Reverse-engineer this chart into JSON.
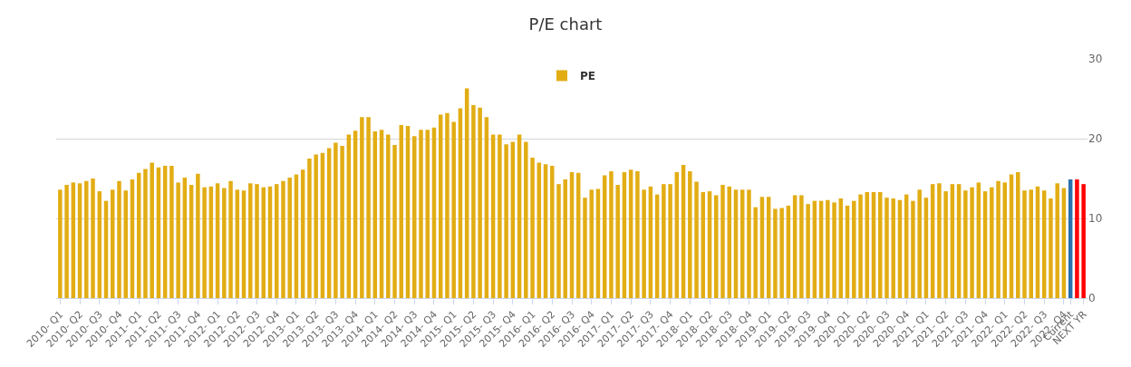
{
  "chart_data": {
    "type": "bar",
    "title": "P/E chart",
    "categories": [
      "2010- Q1",
      null,
      null,
      "2010- Q2",
      null,
      null,
      "2010- Q3",
      null,
      null,
      "2010- Q4",
      null,
      null,
      "2011- Q1",
      null,
      null,
      "2011- Q2",
      null,
      null,
      "2011- Q3",
      null,
      null,
      "2011- Q4",
      null,
      null,
      "2012- Q1",
      null,
      null,
      "2012- Q2",
      null,
      null,
      "2012- Q3",
      null,
      null,
      "2012- Q4",
      null,
      null,
      "2013- Q1",
      null,
      null,
      "2013- Q2",
      null,
      null,
      "2013- Q3",
      null,
      null,
      "2013- Q4",
      null,
      null,
      "2014- Q1",
      null,
      null,
      "2014- Q2",
      null,
      null,
      "2014- Q3",
      null,
      null,
      "2014- Q4",
      null,
      null,
      "2015- Q1",
      null,
      null,
      "2015- Q2",
      null,
      null,
      "2015- Q3",
      null,
      null,
      "2015- Q4",
      null,
      null,
      "2016- Q1",
      null,
      null,
      "2016- Q2",
      null,
      null,
      "2016- Q3",
      null,
      null,
      "2016- Q4",
      null,
      null,
      "2017- Q1",
      null,
      null,
      "2017- Q2",
      null,
      null,
      "2017- Q3",
      null,
      null,
      "2017- Q4",
      null,
      null,
      "2018- Q1",
      null,
      null,
      "2018- Q2",
      null,
      null,
      "2018- Q3",
      null,
      null,
      "2018- Q4",
      null,
      null,
      "2019- Q1",
      null,
      null,
      "2019- Q2",
      null,
      null,
      "2019- Q3",
      null,
      null,
      "2019- Q4",
      null,
      null,
      "2020- Q1",
      null,
      null,
      "2020- Q2",
      null,
      null,
      "2020- Q3",
      null,
      null,
      "2020- Q4",
      null,
      null,
      "2021- Q1",
      null,
      null,
      "2021- Q2",
      null,
      null,
      "2021- Q3",
      null,
      null,
      "2021- Q4",
      null,
      null,
      "2022- Q1",
      null,
      null,
      "2022- Q2",
      null,
      null,
      "2022- Q3",
      null,
      null,
      "2022- Q4",
      "Current",
      null,
      "NEXT YR"
    ],
    "series": [
      {
        "name": "PE",
        "color": "#e2ad14",
        "values": [
          13.6,
          14.2,
          14.5,
          14.4,
          14.7,
          15.0,
          13.4,
          12.2,
          13.6,
          14.7,
          13.5,
          14.9,
          15.7,
          16.2,
          17.0,
          16.4,
          16.6,
          16.6,
          14.5,
          15.1,
          14.2,
          15.6,
          13.9,
          14.0,
          14.4,
          13.8,
          14.7,
          13.6,
          13.5,
          14.4,
          14.3,
          13.9,
          14.0,
          14.3,
          14.7,
          15.1,
          15.5,
          16.1,
          17.5,
          18.0,
          18.2,
          18.8,
          19.5,
          19.1,
          20.5,
          21.0,
          22.7,
          22.7,
          20.9,
          21.1,
          20.5,
          19.2,
          21.7,
          21.6,
          20.3,
          21.1,
          21.1,
          21.4,
          23.0,
          23.2,
          22.1,
          23.8,
          26.3,
          24.2,
          23.9,
          22.7,
          20.5,
          20.5,
          19.3,
          19.6,
          20.5,
          19.6,
          17.6,
          17.0,
          16.8,
          16.6,
          14.3,
          14.9,
          15.8,
          15.7,
          12.6,
          13.6,
          13.7,
          15.4,
          15.9,
          14.2,
          15.8,
          16.1,
          15.9,
          13.6,
          14.0,
          13.0,
          14.3,
          14.3,
          15.8,
          16.7,
          15.9,
          14.6,
          13.3,
          13.4,
          12.9,
          14.2,
          14.0,
          13.6,
          13.6,
          13.6,
          11.4,
          12.7,
          12.7,
          11.2,
          11.3,
          11.6,
          12.9,
          12.9,
          11.8,
          12.2,
          12.2,
          12.3,
          12.0,
          12.5,
          11.6,
          12.2,
          13.0,
          13.3,
          13.3,
          13.3,
          12.6,
          12.5,
          12.3,
          13.0,
          12.2,
          13.6,
          12.6,
          14.3,
          14.4,
          13.4,
          14.3,
          14.3,
          13.5,
          13.9,
          14.5,
          13.4,
          13.9,
          14.7,
          14.5,
          15.5,
          15.8,
          13.5,
          13.6,
          14.0,
          13.5,
          12.5,
          14.4,
          13.8,
          14.9,
          14.9,
          14.3
        ],
        "colors": [
          "#e2ad14",
          "#e2ad14",
          "#e2ad14",
          "#e2ad14",
          "#e2ad14",
          "#e2ad14",
          "#e2ad14",
          "#e2ad14",
          "#e2ad14",
          "#e2ad14",
          "#e2ad14",
          "#e2ad14",
          "#e2ad14",
          "#e2ad14",
          "#e2ad14",
          "#e2ad14",
          "#e2ad14",
          "#e2ad14",
          "#e2ad14",
          "#e2ad14",
          "#e2ad14",
          "#e2ad14",
          "#e2ad14",
          "#e2ad14",
          "#e2ad14",
          "#e2ad14",
          "#e2ad14",
          "#e2ad14",
          "#e2ad14",
          "#e2ad14",
          "#e2ad14",
          "#e2ad14",
          "#e2ad14",
          "#e2ad14",
          "#e2ad14",
          "#e2ad14",
          "#e2ad14",
          "#e2ad14",
          "#e2ad14",
          "#e2ad14",
          "#e2ad14",
          "#e2ad14",
          "#e2ad14",
          "#e2ad14",
          "#e2ad14",
          "#e2ad14",
          "#e2ad14",
          "#e2ad14",
          "#e2ad14",
          "#e2ad14",
          "#e2ad14",
          "#e2ad14",
          "#e2ad14",
          "#e2ad14",
          "#e2ad14",
          "#e2ad14",
          "#e2ad14",
          "#e2ad14",
          "#e2ad14",
          "#e2ad14",
          "#e2ad14",
          "#e2ad14",
          "#e2ad14",
          "#e2ad14",
          "#e2ad14",
          "#e2ad14",
          "#e2ad14",
          "#e2ad14",
          "#e2ad14",
          "#e2ad14",
          "#e2ad14",
          "#e2ad14",
          "#e2ad14",
          "#e2ad14",
          "#e2ad14",
          "#e2ad14",
          "#e2ad14",
          "#e2ad14",
          "#e2ad14",
          "#e2ad14",
          "#e2ad14",
          "#e2ad14",
          "#e2ad14",
          "#e2ad14",
          "#e2ad14",
          "#e2ad14",
          "#e2ad14",
          "#e2ad14",
          "#e2ad14",
          "#e2ad14",
          "#e2ad14",
          "#e2ad14",
          "#e2ad14",
          "#e2ad14",
          "#e2ad14",
          "#e2ad14",
          "#e2ad14",
          "#e2ad14",
          "#e2ad14",
          "#e2ad14",
          "#e2ad14",
          "#e2ad14",
          "#e2ad14",
          "#e2ad14",
          "#e2ad14",
          "#e2ad14",
          "#e2ad14",
          "#e2ad14",
          "#e2ad14",
          "#e2ad14",
          "#e2ad14",
          "#e2ad14",
          "#e2ad14",
          "#e2ad14",
          "#e2ad14",
          "#e2ad14",
          "#e2ad14",
          "#e2ad14",
          "#e2ad14",
          "#e2ad14",
          "#e2ad14",
          "#e2ad14",
          "#e2ad14",
          "#e2ad14",
          "#e2ad14",
          "#e2ad14",
          "#e2ad14",
          "#e2ad14",
          "#e2ad14",
          "#e2ad14",
          "#e2ad14",
          "#e2ad14",
          "#e2ad14",
          "#e2ad14",
          "#e2ad14",
          "#e2ad14",
          "#e2ad14",
          "#e2ad14",
          "#e2ad14",
          "#e2ad14",
          "#e2ad14",
          "#e2ad14",
          "#e2ad14",
          "#e2ad14",
          "#e2ad14",
          "#e2ad14",
          "#e2ad14",
          "#e2ad14",
          "#e2ad14",
          "#e2ad14",
          "#e2ad14",
          "#e2ad14",
          "#e2ad14",
          "#e2ad14",
          "#2a72ad",
          "#ff0000",
          "#ff0000"
        ]
      }
    ],
    "ylim": [
      0,
      30
    ],
    "yticks": [
      0,
      10,
      20,
      30
    ],
    "grid": "y",
    "legend": "top"
  }
}
